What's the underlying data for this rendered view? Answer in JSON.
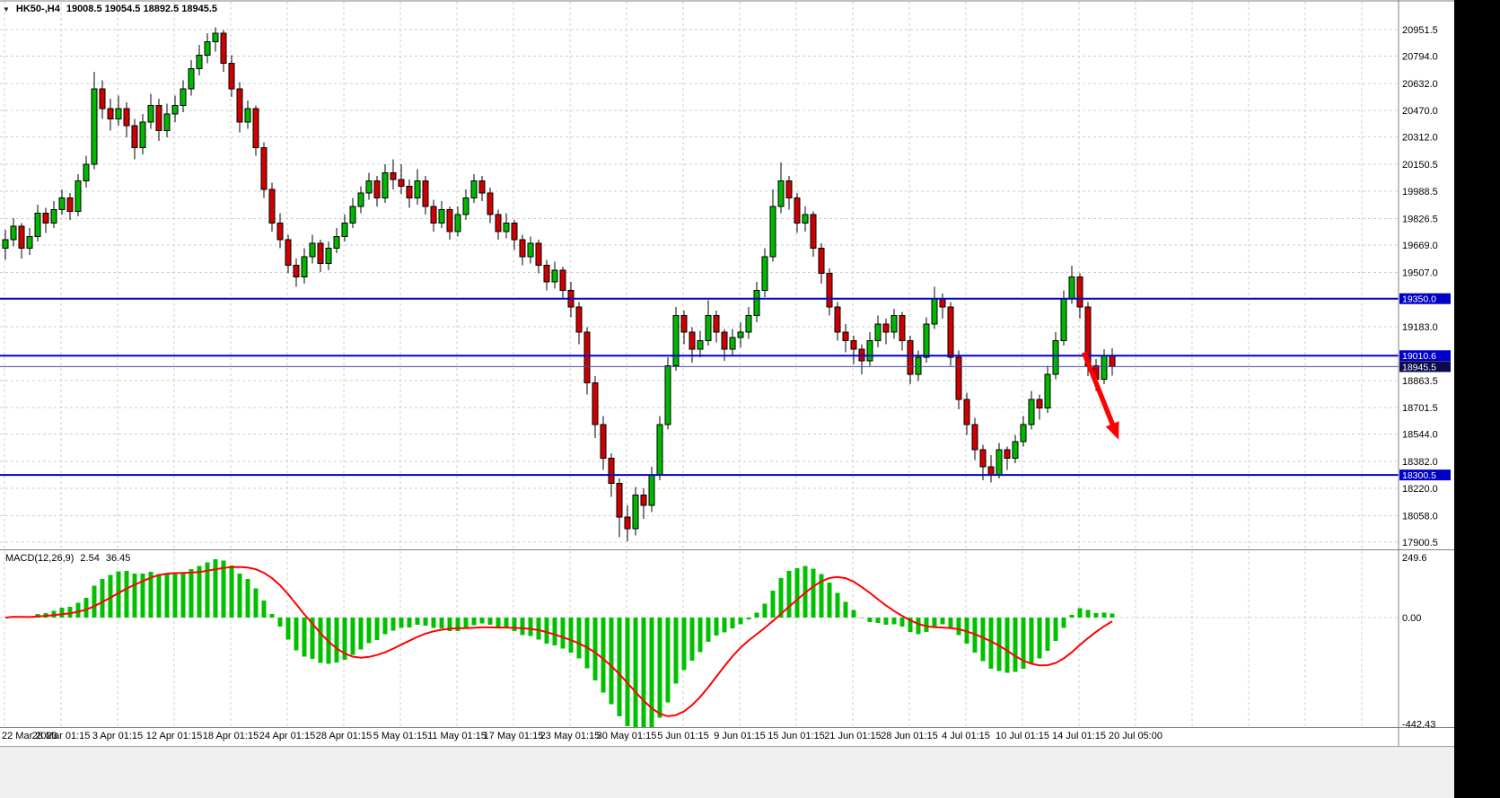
{
  "header": {
    "marker": "▼",
    "symbol_period": "HK50-,H4",
    "ohlc_text": "19008.5 19054.5 18892.5 18945.5"
  },
  "macd_label": {
    "name": "MACD(12,26,9)",
    "main": "2.54",
    "signal": "36.45"
  },
  "chart_data": {
    "type": "candlestick",
    "symbol": "HK50-",
    "timeframe": "H4",
    "last_bar_ohlc": {
      "open": 19008.5,
      "high": 19054.5,
      "low": 18892.5,
      "close": 18945.5
    },
    "x_labels": [
      "22 Mar 2023",
      "28 Mar 01:15",
      "3 Apr 01:15",
      "12 Apr 01:15",
      "18 Apr 01:15",
      "24 Apr 01:15",
      "28 Apr 01:15",
      "5 May 01:15",
      "11 May 01:15",
      "17 May 01:15",
      "23 May 01:15",
      "30 May 01:15",
      "5 Jun 01:15",
      "9 Jun 01:15",
      "15 Jun 01:15",
      "21 Jun 01:15",
      "28 Jun 01:15",
      "4 Jul 01:15",
      "10 Jul 01:15",
      "14 Jul 01:15",
      "20 Jul 05:00"
    ],
    "bars_per_x_label": 7,
    "grid": "dashed",
    "ylim_visible": [
      17900.5,
      20951.5
    ],
    "y_ticks": [
      {
        "p": 20951.5,
        "t": "20951.5"
      },
      {
        "p": 20794.0,
        "t": "20794.0"
      },
      {
        "p": 20632.0,
        "t": "20632.0"
      },
      {
        "p": 20470.0,
        "t": "20470.0"
      },
      {
        "p": 20312.0,
        "t": "20312.0"
      },
      {
        "p": 20150.5,
        "t": "20150.5"
      },
      {
        "p": 19988.5,
        "t": "19988.5"
      },
      {
        "p": 19826.5,
        "t": "19826.5"
      },
      {
        "p": 19669.0,
        "t": "19669.0"
      },
      {
        "p": 19507.0,
        "t": "19507.0"
      },
      {
        "p": 19183.0,
        "t": "19183.0"
      },
      {
        "p": 18863.5,
        "t": "18863.5"
      },
      {
        "p": 18701.5,
        "t": "18701.5"
      },
      {
        "p": 18544.0,
        "t": "18544.0"
      },
      {
        "p": 18382.0,
        "t": "18382.0"
      },
      {
        "p": 18220.0,
        "t": "18220.0"
      },
      {
        "p": 18058.0,
        "t": "18058.0"
      },
      {
        "p": 17900.5,
        "t": "17900.5"
      }
    ],
    "hlines": [
      {
        "p": 19350.0,
        "t": "19350.0"
      },
      {
        "p": 19010.6,
        "t": "19010.6"
      },
      {
        "p": 18300.5,
        "t": "18300.5"
      }
    ],
    "current_price": {
      "p": 18945.5,
      "t": "18945.5"
    },
    "arrow": {
      "from_bar": 133.5,
      "from_price": 19030,
      "to_bar": 137.8,
      "to_price": 18510
    },
    "candles": [
      [
        19650,
        19760,
        19580,
        19700
      ],
      [
        19700,
        19830,
        19660,
        19780
      ],
      [
        19780,
        19800,
        19590,
        19650
      ],
      [
        19650,
        19770,
        19610,
        19720
      ],
      [
        19720,
        19910,
        19690,
        19860
      ],
      [
        19860,
        19890,
        19740,
        19800
      ],
      [
        19800,
        19930,
        19770,
        19880
      ],
      [
        19880,
        20000,
        19850,
        19950
      ],
      [
        19950,
        19980,
        19820,
        19870
      ],
      [
        19870,
        20090,
        19840,
        20050
      ],
      [
        20050,
        20200,
        20010,
        20150
      ],
      [
        20150,
        20700,
        20120,
        20600
      ],
      [
        20600,
        20650,
        20420,
        20480
      ],
      [
        20480,
        20540,
        20350,
        20420
      ],
      [
        20420,
        20560,
        20380,
        20480
      ],
      [
        20480,
        20520,
        20310,
        20380
      ],
      [
        20380,
        20420,
        20180,
        20250
      ],
      [
        20250,
        20450,
        20210,
        20400
      ],
      [
        20400,
        20570,
        20360,
        20500
      ],
      [
        20500,
        20540,
        20290,
        20350
      ],
      [
        20350,
        20510,
        20310,
        20450
      ],
      [
        20450,
        20560,
        20400,
        20500
      ],
      [
        20500,
        20650,
        20460,
        20600
      ],
      [
        20600,
        20770,
        20560,
        20720
      ],
      [
        20720,
        20860,
        20680,
        20800
      ],
      [
        20800,
        20930,
        20750,
        20880
      ],
      [
        20880,
        20965,
        20820,
        20930
      ],
      [
        20930,
        20950,
        20700,
        20750
      ],
      [
        20750,
        20800,
        20550,
        20600
      ],
      [
        20600,
        20640,
        20340,
        20400
      ],
      [
        20400,
        20530,
        20360,
        20480
      ],
      [
        20480,
        20500,
        20200,
        20250
      ],
      [
        20250,
        20280,
        19950,
        20000
      ],
      [
        20000,
        20040,
        19750,
        19800
      ],
      [
        19800,
        19860,
        19650,
        19700
      ],
      [
        19700,
        19730,
        19500,
        19550
      ],
      [
        19550,
        19590,
        19420,
        19480
      ],
      [
        19480,
        19650,
        19440,
        19600
      ],
      [
        19600,
        19730,
        19560,
        19680
      ],
      [
        19680,
        19700,
        19510,
        19560
      ],
      [
        19560,
        19690,
        19520,
        19650
      ],
      [
        19650,
        19770,
        19620,
        19720
      ],
      [
        19720,
        19850,
        19690,
        19800
      ],
      [
        19800,
        19950,
        19770,
        19900
      ],
      [
        19900,
        20020,
        19860,
        19980
      ],
      [
        19980,
        20100,
        19940,
        20050
      ],
      [
        20050,
        20080,
        19900,
        19950
      ],
      [
        19950,
        20150,
        19920,
        20100
      ],
      [
        20100,
        20180,
        20000,
        20060
      ],
      [
        20060,
        20150,
        19970,
        20020
      ],
      [
        20020,
        20060,
        19890,
        19950
      ],
      [
        19950,
        20120,
        19910,
        20050
      ],
      [
        20050,
        20080,
        19850,
        19900
      ],
      [
        19900,
        19940,
        19750,
        19800
      ],
      [
        19800,
        19930,
        19770,
        19880
      ],
      [
        19880,
        19900,
        19700,
        19750
      ],
      [
        19750,
        19900,
        19720,
        19850
      ],
      [
        19850,
        20000,
        19820,
        19950
      ],
      [
        19950,
        20090,
        19920,
        20050
      ],
      [
        20050,
        20080,
        19930,
        19980
      ],
      [
        19980,
        20010,
        19800,
        19850
      ],
      [
        19850,
        19880,
        19700,
        19750
      ],
      [
        19750,
        19860,
        19710,
        19800
      ],
      [
        19800,
        19820,
        19640,
        19700
      ],
      [
        19700,
        19730,
        19550,
        19600
      ],
      [
        19600,
        19720,
        19560,
        19680
      ],
      [
        19680,
        19700,
        19500,
        19550
      ],
      [
        19550,
        19580,
        19400,
        19450
      ],
      [
        19450,
        19570,
        19410,
        19520
      ],
      [
        19520,
        19540,
        19350,
        19400
      ],
      [
        19400,
        19450,
        19240,
        19300
      ],
      [
        19300,
        19330,
        19080,
        19150
      ],
      [
        19150,
        19180,
        18780,
        18850
      ],
      [
        18850,
        18890,
        18520,
        18600
      ],
      [
        18600,
        18650,
        18330,
        18400
      ],
      [
        18400,
        18430,
        18170,
        18250
      ],
      [
        18250,
        18280,
        17930,
        18050
      ],
      [
        18050,
        18120,
        17905,
        17980
      ],
      [
        17980,
        18230,
        17940,
        18180
      ],
      [
        18180,
        18220,
        18040,
        18120
      ],
      [
        18120,
        18350,
        18080,
        18300
      ],
      [
        18300,
        18650,
        18270,
        18600
      ],
      [
        18600,
        19000,
        18570,
        18950
      ],
      [
        18950,
        19300,
        18920,
        19250
      ],
      [
        19250,
        19280,
        19080,
        19150
      ],
      [
        19150,
        19180,
        18970,
        19050
      ],
      [
        19050,
        19160,
        19000,
        19100
      ],
      [
        19100,
        19340,
        19070,
        19250
      ],
      [
        19250,
        19280,
        19090,
        19150
      ],
      [
        19150,
        19170,
        18980,
        19050
      ],
      [
        19050,
        19170,
        19010,
        19120
      ],
      [
        19120,
        19210,
        19060,
        19150
      ],
      [
        19150,
        19300,
        19110,
        19250
      ],
      [
        19250,
        19450,
        19210,
        19400
      ],
      [
        19400,
        19650,
        19360,
        19600
      ],
      [
        19600,
        20000,
        19570,
        19900
      ],
      [
        19900,
        20160,
        19860,
        20050
      ],
      [
        20050,
        20080,
        19880,
        19950
      ],
      [
        19950,
        19980,
        19740,
        19800
      ],
      [
        19800,
        19900,
        19750,
        19850
      ],
      [
        19850,
        19870,
        19600,
        19650
      ],
      [
        19650,
        19680,
        19440,
        19500
      ],
      [
        19500,
        19530,
        19250,
        19300
      ],
      [
        19300,
        19330,
        19100,
        19150
      ],
      [
        19150,
        19200,
        19030,
        19100
      ],
      [
        19100,
        19130,
        18960,
        19050
      ],
      [
        19050,
        19080,
        18900,
        18980
      ],
      [
        18980,
        19150,
        18950,
        19100
      ],
      [
        19100,
        19250,
        19060,
        19200
      ],
      [
        19200,
        19230,
        19080,
        19150
      ],
      [
        19150,
        19290,
        19110,
        19250
      ],
      [
        19250,
        19270,
        19040,
        19100
      ],
      [
        19100,
        19130,
        18840,
        18900
      ],
      [
        18900,
        19040,
        18860,
        19000
      ],
      [
        19000,
        19240,
        18970,
        19200
      ],
      [
        19200,
        19420,
        19170,
        19350
      ],
      [
        19350,
        19380,
        19230,
        19300
      ],
      [
        19300,
        19330,
        18950,
        19000
      ],
      [
        19000,
        19040,
        18690,
        18750
      ],
      [
        18750,
        18790,
        18540,
        18600
      ],
      [
        18600,
        18640,
        18390,
        18450
      ],
      [
        18450,
        18480,
        18270,
        18350
      ],
      [
        18350,
        18420,
        18255,
        18300
      ],
      [
        18300,
        18490,
        18280,
        18450
      ],
      [
        18450,
        18470,
        18330,
        18400
      ],
      [
        18400,
        18540,
        18370,
        18500
      ],
      [
        18500,
        18650,
        18470,
        18600
      ],
      [
        18600,
        18800,
        18570,
        18750
      ],
      [
        18750,
        18780,
        18630,
        18700
      ],
      [
        18700,
        18950,
        18670,
        18900
      ],
      [
        18900,
        19150,
        18870,
        19100
      ],
      [
        19100,
        19400,
        19070,
        19350
      ],
      [
        19350,
        19545,
        19320,
        19480
      ],
      [
        19480,
        19500,
        19230,
        19300
      ],
      [
        19300,
        19330,
        18890,
        18950
      ],
      [
        18950,
        18990,
        18800,
        18870
      ],
      [
        18870,
        19050,
        18840,
        19008.5
      ],
      [
        19008.5,
        19054.5,
        18892.5,
        18945.5
      ]
    ],
    "macd": {
      "label": "MACD(12,26,9)",
      "main_value": 2.54,
      "signal_value": 36.45,
      "fast": 12,
      "slow": 26,
      "signal": 9,
      "y_ticks": [
        {
          "v": 249.6,
          "t": "249.6"
        },
        {
          "v": 0,
          "t": "0.00"
        },
        {
          "v": -442.43,
          "t": "-442.43"
        }
      ],
      "ylim": [
        -442.43,
        249.6
      ]
    },
    "colors": {
      "up": "#00B800",
      "down": "#CF0000",
      "outline": "#000000",
      "hline": "#0000C8",
      "current_badge": "#0A0A4C",
      "current_line": "#4A4AA8",
      "grid": "#CDCDCD",
      "hist": "#00C000",
      "signal_line": "#FF0000",
      "arrow": "#FF0000",
      "axis_text": "#000000"
    }
  }
}
